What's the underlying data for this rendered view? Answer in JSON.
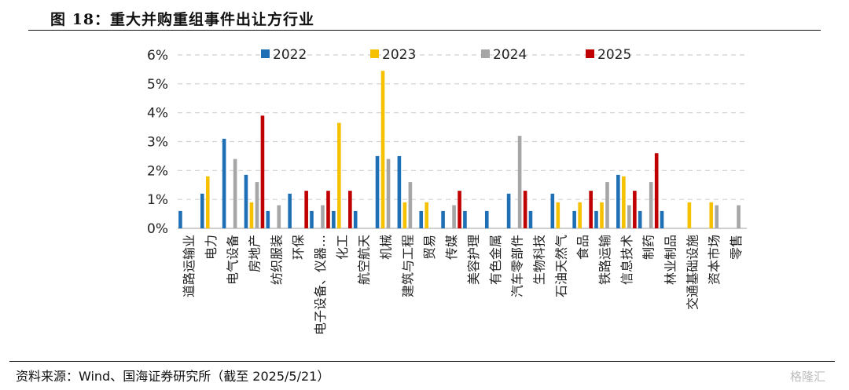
{
  "header": {
    "title": "图 18：重大并购重组事件出让方行业"
  },
  "source": "资料来源：Wind、国海证券研究所（截至 2025/5/21）",
  "watermark": "格隆汇",
  "chart_data": {
    "type": "bar",
    "title": "",
    "xlabel": "",
    "ylabel": "",
    "ylim": [
      0,
      6
    ],
    "ytick_labels": [
      "0%",
      "1%",
      "2%",
      "3%",
      "4%",
      "5%",
      "6%"
    ],
    "grid": "horizontal dashed",
    "legend_position": "top",
    "colors": [
      "#1f6fb5",
      "#f5c100",
      "#a6a6a6",
      "#c00000"
    ],
    "categories": [
      "道路运输业",
      "电力",
      "电气设备",
      "房地产",
      "纺织服装",
      "环保",
      "电子设备、仪器…",
      "化工",
      "航空航天",
      "机械",
      "建筑与工程",
      "贸易",
      "传媒",
      "美容护理",
      "有色金属",
      "汽车零部件",
      "生物科技",
      "石油天然气",
      "食品",
      "铁路运输",
      "信息技术",
      "制药",
      "林业制品",
      "交通基础设施",
      "资本市场",
      "零售"
    ],
    "series": [
      {
        "name": "2022",
        "values": [
          0.6,
          1.2,
          3.1,
          1.85,
          0.6,
          1.2,
          0.6,
          0.6,
          0.6,
          2.5,
          2.5,
          0.6,
          0.6,
          0.6,
          0.6,
          1.2,
          0.6,
          1.2,
          0.6,
          0.6,
          1.85,
          0.6,
          0.6,
          0,
          0,
          0
        ]
      },
      {
        "name": "2023",
        "values": [
          0,
          1.8,
          0,
          0.9,
          0,
          0,
          0,
          3.65,
          0,
          5.45,
          0.9,
          0.9,
          0,
          0,
          0,
          0,
          0,
          0.9,
          0.9,
          0.9,
          1.8,
          0,
          0,
          0.9,
          0.9,
          0
        ]
      },
      {
        "name": "2024",
        "values": [
          0,
          0,
          2.4,
          1.6,
          0.8,
          0,
          0.8,
          0,
          0,
          2.4,
          1.6,
          0,
          0.8,
          0,
          0,
          3.2,
          0,
          0,
          0,
          1.6,
          0.8,
          1.6,
          0,
          0,
          0.8,
          0.8
        ]
      },
      {
        "name": "2025",
        "values": [
          0,
          0,
          0,
          3.9,
          0,
          1.3,
          1.3,
          1.3,
          0,
          0,
          0,
          0,
          1.3,
          0,
          0,
          1.3,
          0,
          0,
          1.3,
          0,
          1.3,
          2.6,
          0,
          0,
          0,
          0
        ]
      }
    ]
  }
}
